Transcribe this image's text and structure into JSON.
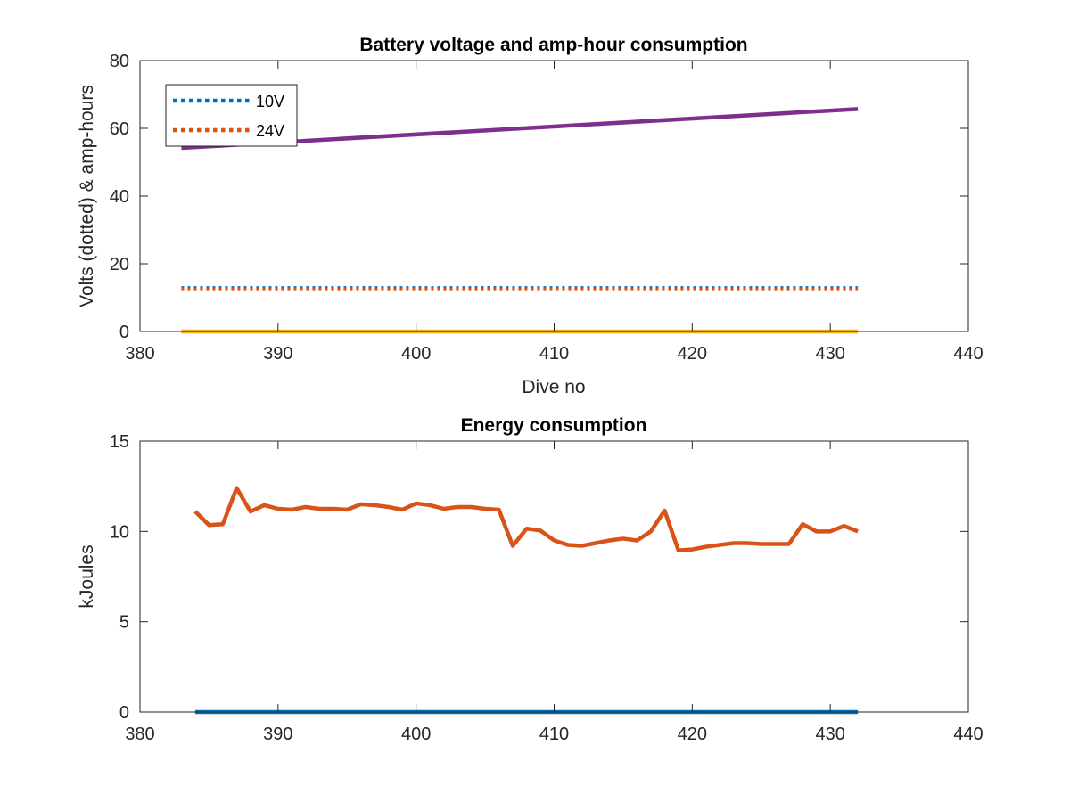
{
  "chart_data": [
    {
      "type": "line",
      "title": "Battery voltage and amp-hour consumption",
      "xlabel": "Dive no",
      "ylabel": "Volts (dotted) & amp-hours",
      "xlim": [
        380,
        440
      ],
      "ylim": [
        0,
        80
      ],
      "xticks": [
        "380",
        "390",
        "400",
        "410",
        "420",
        "430",
        "440"
      ],
      "yticks": [
        "0",
        "20",
        "40",
        "60",
        "80"
      ],
      "legend": {
        "placement": "top-left",
        "entries": [
          "10V",
          "24V"
        ]
      },
      "series": [
        {
          "name": "10V",
          "color": "#0072BD",
          "style": "dotted",
          "x": [
            383,
            432
          ],
          "y": [
            13.0,
            13.0
          ]
        },
        {
          "name": "24V",
          "color": "#D95319",
          "style": "dotted",
          "x": [
            383,
            432
          ],
          "y": [
            12.6,
            12.6
          ]
        },
        {
          "color": "#7E2F8E",
          "style": "solid",
          "x": [
            383,
            432
          ],
          "y": [
            54.2,
            65.7
          ]
        },
        {
          "color": "#EDB120",
          "style": "solid",
          "x": [
            383,
            432
          ],
          "y": [
            0,
            0
          ]
        }
      ]
    },
    {
      "type": "line",
      "title": "Energy consumption",
      "xlabel": "",
      "ylabel": "kJoules",
      "xlim": [
        380,
        440
      ],
      "ylim": [
        0,
        15
      ],
      "xticks": [
        "380",
        "390",
        "400",
        "410",
        "420",
        "430",
        "440"
      ],
      "yticks": [
        "0",
        "5",
        "10",
        "15"
      ],
      "series": [
        {
          "color": "#D95319",
          "style": "solid",
          "x": [
            384,
            385,
            386,
            387,
            388,
            389,
            390,
            391,
            392,
            393,
            394,
            395,
            396,
            397,
            398,
            399,
            400,
            401,
            402,
            403,
            404,
            405,
            406,
            407,
            408,
            409,
            410,
            411,
            412,
            413,
            414,
            415,
            416,
            417,
            418,
            419,
            420,
            421,
            422,
            423,
            424,
            425,
            426,
            427,
            428,
            429,
            430,
            431,
            432
          ],
          "y": [
            11.1,
            10.35,
            10.4,
            12.4,
            11.1,
            11.45,
            11.25,
            11.2,
            11.35,
            11.25,
            11.25,
            11.2,
            11.5,
            11.45,
            11.35,
            11.2,
            11.55,
            11.45,
            11.25,
            11.35,
            11.35,
            11.25,
            11.2,
            9.2,
            10.15,
            10.05,
            9.5,
            9.25,
            9.2,
            9.35,
            9.5,
            9.6,
            9.5,
            10.0,
            11.15,
            8.95,
            9.0,
            9.15,
            9.25,
            9.35,
            9.35,
            9.3,
            9.3,
            9.3,
            10.4,
            10.0,
            10.0,
            10.3,
            10.0
          ]
        },
        {
          "color": "#0072BD",
          "style": "solid",
          "x": [
            384,
            432
          ],
          "y": [
            0,
            0
          ]
        }
      ]
    }
  ]
}
